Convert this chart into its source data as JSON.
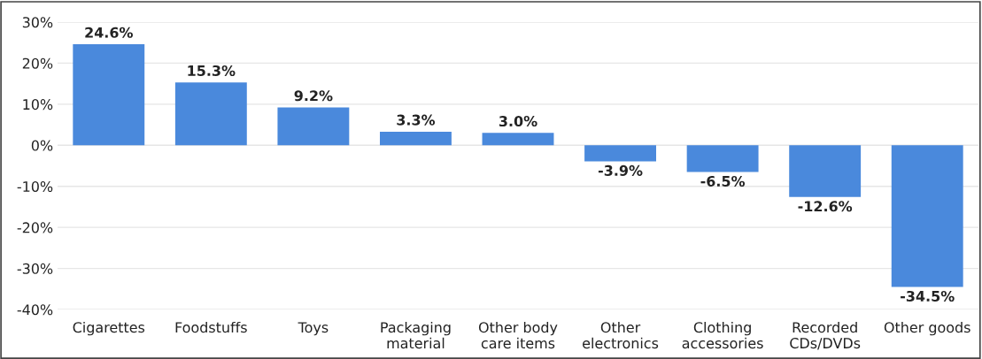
{
  "chart_data": {
    "type": "bar",
    "categories": [
      "Cigarettes",
      "Foodstuffs",
      "Toys",
      "Packaging\nmaterial",
      "Other body\ncare items",
      "Other\nelectronics",
      "Clothing\naccessories",
      "Recorded\nCDs/DVDs",
      "Other goods"
    ],
    "values": [
      24.6,
      15.3,
      9.2,
      3.3,
      3.0,
      -3.9,
      -6.5,
      -12.6,
      -34.5
    ],
    "value_labels": [
      "24.6%",
      "15.3%",
      "9.2%",
      "3.3%",
      "3.0%",
      "-3.9%",
      "-6.5%",
      "-12.6%",
      "-34.5%"
    ],
    "color": "#4a89dc",
    "ylim": [
      -40,
      30
    ],
    "yticks": [
      {
        "value": -40,
        "label": "-40%"
      },
      {
        "value": -30,
        "label": "-30%"
      },
      {
        "value": -20,
        "label": "-20%"
      },
      {
        "value": -10,
        "label": "-10%"
      },
      {
        "value": 0,
        "label": "0%"
      },
      {
        "value": 10,
        "label": "10%"
      },
      {
        "value": 20,
        "label": "20%"
      },
      {
        "value": 30,
        "label": "30%"
      }
    ],
    "grid": "y"
  }
}
